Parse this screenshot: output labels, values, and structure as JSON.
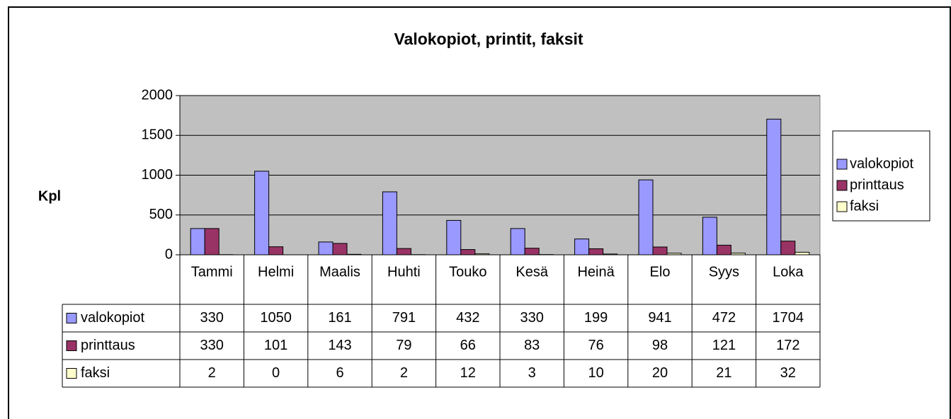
{
  "chart_data": {
    "type": "bar",
    "title": "Valokopiot, printit, faksit",
    "y_label": "Kpl",
    "categories": [
      "Tammi",
      "Helmi",
      "Maalis",
      "Huhti",
      "Touko",
      "Kesä",
      "Heinä",
      "Elo",
      "Syys",
      "Loka"
    ],
    "series": [
      {
        "name": "valokopiot",
        "color": "#9999ff",
        "values": [
          330,
          1050,
          161,
          791,
          432,
          330,
          199,
          941,
          472,
          1704
        ]
      },
      {
        "name": "printtaus",
        "color": "#993366",
        "values": [
          330,
          101,
          143,
          79,
          66,
          83,
          76,
          98,
          121,
          172
        ]
      },
      {
        "name": "faksi",
        "color": "#ffffcc",
        "values": [
          2,
          0,
          6,
          2,
          12,
          3,
          10,
          20,
          21,
          32
        ]
      }
    ],
    "ylim": [
      0,
      2000
    ],
    "yticks": [
      0,
      500,
      1000,
      1500,
      2000
    ],
    "grid": true,
    "legend": "right",
    "data_table": true
  }
}
